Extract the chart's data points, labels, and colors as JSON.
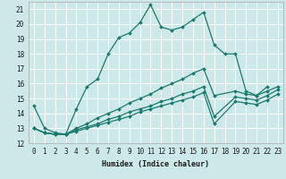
{
  "xlabel": "Humidex (Indice chaleur)",
  "bg_color": "#cce8e8",
  "grid_color": "#ffffff",
  "line_color": "#1a7a6e",
  "xlim": [
    -0.5,
    23.5
  ],
  "ylim": [
    12,
    21.5
  ],
  "xticks": [
    0,
    1,
    2,
    3,
    4,
    5,
    6,
    7,
    8,
    9,
    10,
    11,
    12,
    13,
    14,
    15,
    16,
    17,
    18,
    19,
    20,
    21,
    22,
    23
  ],
  "yticks": [
    12,
    13,
    14,
    15,
    16,
    17,
    18,
    19,
    20,
    21
  ],
  "series": [
    {
      "x": [
        0,
        1,
        2,
        3,
        4,
        5,
        6,
        7,
        8,
        9,
        10,
        11,
        12,
        13,
        14,
        15,
        16,
        17,
        18,
        19,
        20,
        21,
        22
      ],
      "y": [
        14.5,
        13.0,
        12.7,
        12.6,
        14.3,
        15.8,
        16.3,
        18.0,
        19.1,
        19.4,
        20.1,
        21.3,
        19.8,
        19.6,
        19.8,
        20.3,
        20.8,
        18.6,
        18.0,
        18.0,
        15.5,
        15.2,
        15.8
      ]
    },
    {
      "x": [
        0,
        1,
        2,
        3,
        4,
        5,
        6,
        7,
        8,
        9,
        10,
        11,
        12,
        13,
        14,
        15,
        16,
        17,
        19,
        20,
        21,
        22,
        23
      ],
      "y": [
        13.0,
        12.7,
        12.6,
        12.6,
        13.0,
        13.3,
        13.7,
        14.0,
        14.3,
        14.7,
        15.0,
        15.3,
        15.7,
        16.0,
        16.3,
        16.7,
        17.0,
        15.2,
        15.5,
        15.3,
        15.2,
        15.5,
        15.8
      ]
    },
    {
      "x": [
        0,
        1,
        2,
        3,
        4,
        5,
        6,
        7,
        8,
        9,
        10,
        11,
        12,
        13,
        14,
        15,
        16,
        17,
        19,
        20,
        21,
        22,
        23
      ],
      "y": [
        13.0,
        12.7,
        12.6,
        12.6,
        12.9,
        13.1,
        13.3,
        13.6,
        13.8,
        14.1,
        14.3,
        14.5,
        14.8,
        15.0,
        15.3,
        15.5,
        15.8,
        13.8,
        15.1,
        15.0,
        14.9,
        15.2,
        15.6
      ]
    },
    {
      "x": [
        0,
        1,
        2,
        3,
        4,
        5,
        6,
        7,
        8,
        9,
        10,
        11,
        12,
        13,
        14,
        15,
        16,
        17,
        19,
        20,
        21,
        22,
        23
      ],
      "y": [
        13.0,
        12.7,
        12.6,
        12.6,
        12.8,
        13.0,
        13.2,
        13.4,
        13.6,
        13.8,
        14.1,
        14.3,
        14.5,
        14.7,
        14.9,
        15.1,
        15.4,
        13.3,
        14.8,
        14.7,
        14.6,
        14.9,
        15.3
      ]
    }
  ],
  "marker": "D",
  "marker_size": 2.0,
  "line_width": 0.9,
  "axis_fontsize": 6,
  "tick_fontsize": 5.5
}
